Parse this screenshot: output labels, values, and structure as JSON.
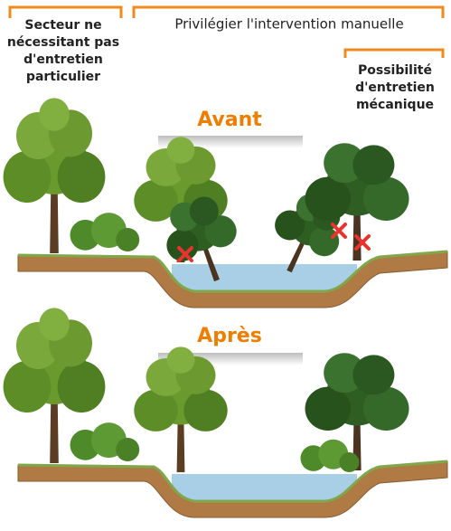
{
  "labels": {
    "left": [
      "Secteur ne",
      "nécessitant pas",
      "d'entretien",
      "particulier"
    ],
    "middle": "Privilégier l'intervention manuelle",
    "right": [
      "Possibilité",
      "d'entretien",
      "mécanique"
    ]
  },
  "scenes": [
    {
      "title": "Avant"
    },
    {
      "title": "Après"
    }
  ]
}
